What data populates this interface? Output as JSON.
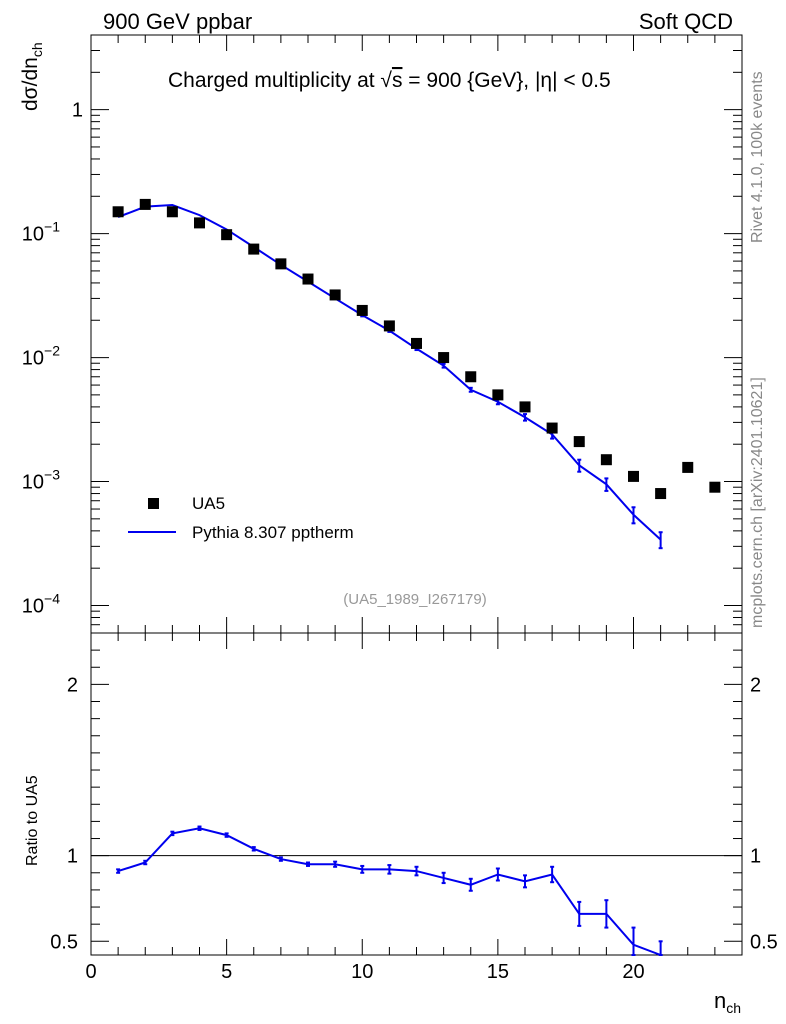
{
  "header": {
    "left": "900 GeV ppbar",
    "right": "Soft QCD",
    "title_prefix": "Charged multiplicity at ",
    "title_sqrt": "√",
    "title_s": "s",
    "title_suffix": " = 900 {GeV}, |η| < 0.5"
  },
  "side_labels": {
    "rivet": "Rivet 4.1.0,  100k events",
    "mcplots": "mcplots.cern.ch [arXiv:2401.10621]"
  },
  "analysis_id": "(UA5_1989_I267179)",
  "chart_data": [
    {
      "type": "scatter",
      "panel": "main",
      "yscale": "log",
      "ylabel": "dσ/dn_ch",
      "ylabel_main": "dσ/dn",
      "ylabel_sub": "ch",
      "xlim": [
        0,
        24
      ],
      "ylim": [
        6e-05,
        4.0
      ],
      "ytick_labels": [
        {
          "value": 1,
          "base": "1",
          "exp": ""
        },
        {
          "value": 0.1,
          "base": "10",
          "exp": "−1"
        },
        {
          "value": 0.01,
          "base": "10",
          "exp": "−2"
        },
        {
          "value": 0.001,
          "base": "10",
          "exp": "−3"
        },
        {
          "value": 0.0001,
          "base": "10",
          "exp": "−4"
        }
      ],
      "legend_position": "bottom-left",
      "series": [
        {
          "name": "UA5",
          "style": "markers",
          "color": "#000000",
          "x": [
            1,
            2,
            3,
            4,
            5,
            6,
            7,
            8,
            9,
            10,
            11,
            12,
            13,
            14,
            15,
            16,
            17,
            18,
            19,
            20,
            21,
            22,
            23
          ],
          "values": [
            0.15,
            0.172,
            0.15,
            0.122,
            0.098,
            0.075,
            0.057,
            0.043,
            0.032,
            0.024,
            0.018,
            0.013,
            0.01,
            0.007,
            0.005,
            0.004,
            0.0027,
            0.0021,
            0.0015,
            0.0011,
            0.0008,
            0.0013,
            0.0009
          ]
        },
        {
          "name": "Pythia 8.307 pptherm",
          "style": "line",
          "color": "#0000ee",
          "x": [
            1,
            2,
            3,
            4,
            5,
            6,
            7,
            8,
            9,
            10,
            11,
            12,
            13,
            14,
            15,
            16,
            17,
            18,
            19,
            20,
            21
          ],
          "values": [
            0.136,
            0.165,
            0.17,
            0.141,
            0.108,
            0.078,
            0.056,
            0.041,
            0.03,
            0.022,
            0.0165,
            0.0118,
            0.0086,
            0.0055,
            0.0044,
            0.0033,
            0.0024,
            0.00135,
            0.00095,
            0.00054,
            0.00034
          ],
          "errors": [
            0,
            0,
            0,
            0,
            0,
            0,
            0,
            0,
            0,
            0.0005,
            0.0004,
            0.0003,
            0.0003,
            0.0002,
            0.0002,
            0.0002,
            0.00018,
            0.00015,
            0.00011,
            8e-05,
            5e-05
          ]
        }
      ]
    },
    {
      "type": "line",
      "panel": "ratio",
      "ylabel": "Ratio to UA5",
      "xlabel": "n_ch",
      "xlabel_main": "n",
      "xlabel_sub": "ch",
      "xlim": [
        0,
        24
      ],
      "ylim": [
        0.42,
        2.3
      ],
      "xtick_labels": [
        {
          "value": 0,
          "label": "0"
        },
        {
          "value": 5,
          "label": "5"
        },
        {
          "value": 10,
          "label": "10"
        },
        {
          "value": 15,
          "label": "15"
        },
        {
          "value": 20,
          "label": "20"
        }
      ],
      "ytick_labels": [
        {
          "value": 0.5,
          "label": "0.5"
        },
        {
          "value": 1,
          "label": "1"
        },
        {
          "value": 2,
          "label": "2"
        }
      ],
      "reference_line": 1,
      "series": [
        {
          "name": "Pythia 8.307 pptherm / UA5",
          "color": "#0000ee",
          "x": [
            1,
            2,
            3,
            4,
            5,
            6,
            7,
            8,
            9,
            10,
            11,
            12,
            13,
            14,
            15,
            16,
            17,
            18,
            19,
            20,
            21
          ],
          "values": [
            0.91,
            0.96,
            1.13,
            1.16,
            1.12,
            1.04,
            0.98,
            0.95,
            0.95,
            0.92,
            0.92,
            0.91,
            0.87,
            0.83,
            0.89,
            0.85,
            0.89,
            0.66,
            0.66,
            0.48,
            0.38
          ],
          "errors": [
            0.01,
            0.01,
            0.01,
            0.01,
            0.01,
            0.01,
            0.01,
            0.01,
            0.015,
            0.02,
            0.025,
            0.025,
            0.03,
            0.035,
            0.035,
            0.035,
            0.045,
            0.07,
            0.08,
            0.1,
            0.12
          ]
        }
      ]
    }
  ]
}
